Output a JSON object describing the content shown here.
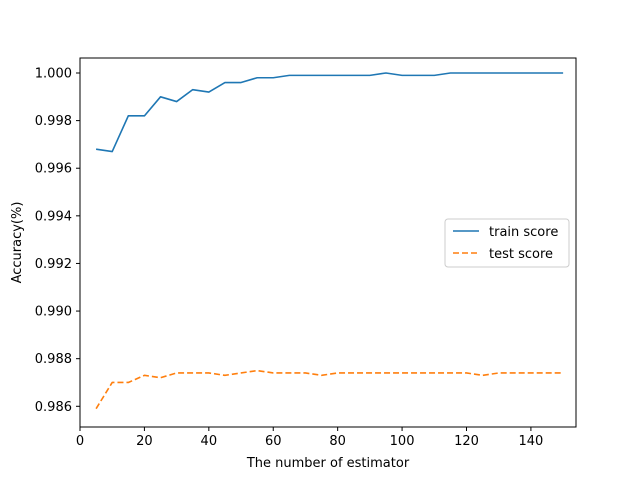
{
  "chart_data": {
    "type": "line",
    "title": "",
    "xlabel": "The number of estimator",
    "ylabel": "Accuracy(%)",
    "xlim": [
      0,
      154
    ],
    "ylim": [
      0.98513,
      1.00063
    ],
    "xticks": [
      0,
      20,
      40,
      60,
      80,
      100,
      120,
      140
    ],
    "yticks": [
      0.986,
      0.988,
      0.99,
      0.992,
      0.994,
      0.996,
      0.998,
      1.0
    ],
    "ytick_labels": [
      "0.986",
      "0.988",
      "0.990",
      "0.992",
      "0.994",
      "0.996",
      "0.998",
      "1.000"
    ],
    "grid": false,
    "legend_position": "center-right",
    "x": [
      5,
      10,
      15,
      20,
      25,
      30,
      35,
      40,
      45,
      50,
      55,
      60,
      65,
      70,
      75,
      80,
      85,
      90,
      95,
      100,
      105,
      110,
      115,
      120,
      125,
      130,
      135,
      140,
      145,
      150
    ],
    "series": [
      {
        "name": "train score",
        "color": "#1f77b4",
        "style": "solid",
        "values": [
          0.9968,
          0.9967,
          0.9982,
          0.9982,
          0.999,
          0.9988,
          0.9993,
          0.9992,
          0.9996,
          0.9996,
          0.9998,
          0.9998,
          0.9999,
          0.9999,
          0.9999,
          0.9999,
          0.9999,
          0.9999,
          1.0,
          0.9999,
          0.9999,
          0.9999,
          1.0,
          1.0,
          1.0,
          1.0,
          1.0,
          1.0,
          1.0,
          1.0
        ]
      },
      {
        "name": "test score",
        "color": "#ff7f0e",
        "style": "dashed",
        "values": [
          0.9859,
          0.987,
          0.987,
          0.9873,
          0.9872,
          0.9874,
          0.9874,
          0.9874,
          0.9873,
          0.9874,
          0.9875,
          0.9874,
          0.9874,
          0.9874,
          0.9873,
          0.9874,
          0.9874,
          0.9874,
          0.9874,
          0.9874,
          0.9874,
          0.9874,
          0.9874,
          0.9874,
          0.9873,
          0.9874,
          0.9874,
          0.9874,
          0.9874,
          0.9874
        ]
      }
    ]
  }
}
